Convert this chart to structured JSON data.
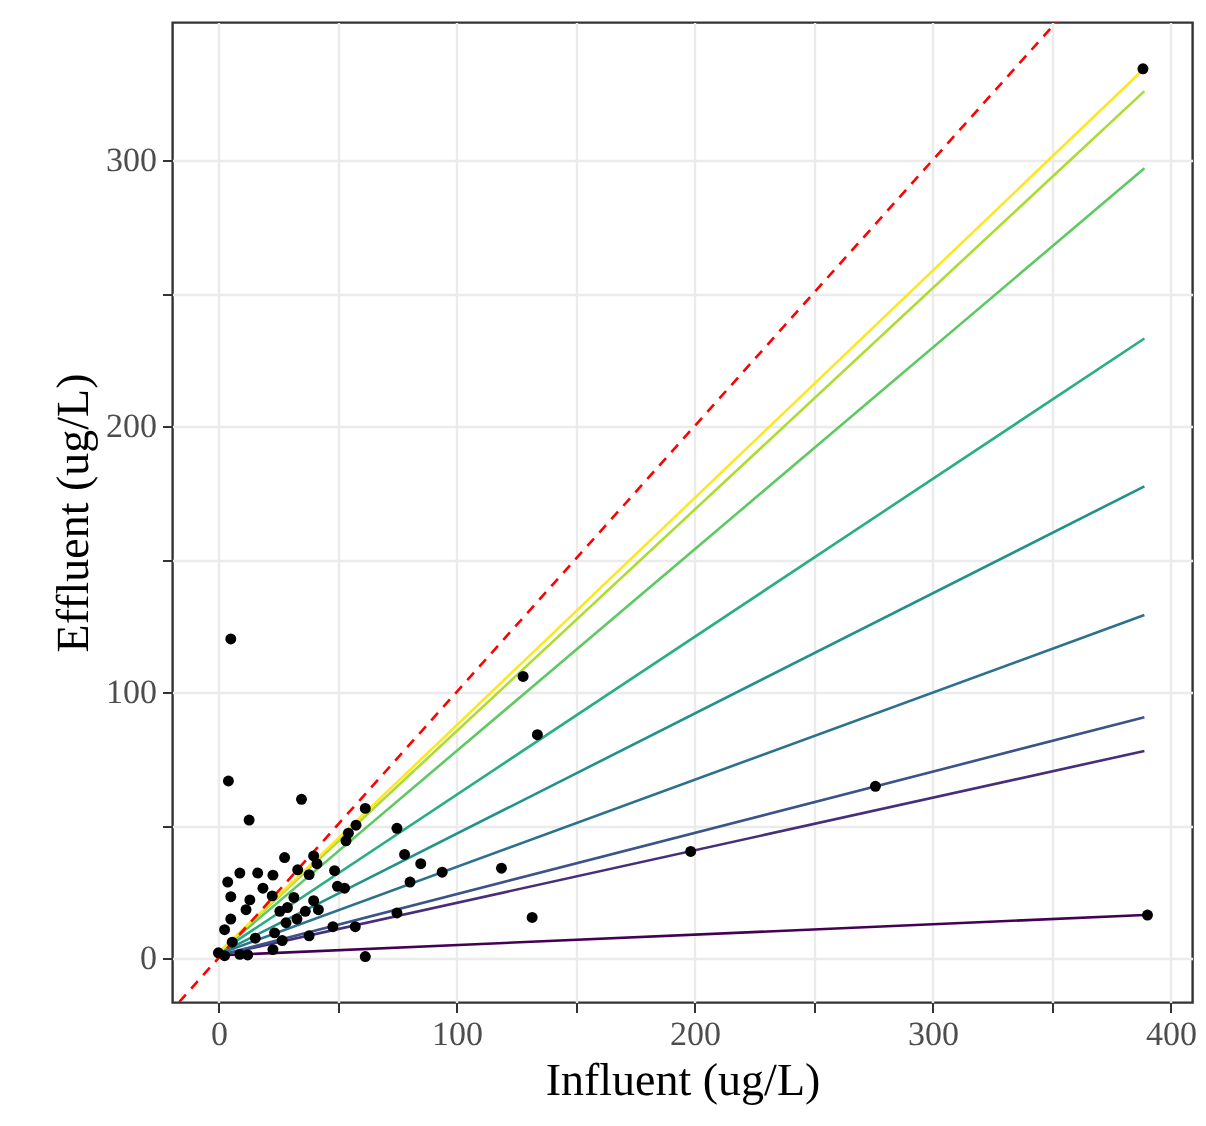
{
  "chart_data": {
    "type": "scatter",
    "xlabel": "Influent (ug/L)",
    "ylabel": "Effluent (ug/L)",
    "xlim": [
      -19.5,
      409
    ],
    "ylim": [
      -16.5,
      352
    ],
    "xticks": [
      0,
      {
        "value": 50,
        "label": null
      },
      100,
      {
        "value": 150,
        "label": null
      },
      200,
      {
        "value": 250,
        "label": null
      },
      300,
      {
        "value": 350,
        "label": null
      },
      400
    ],
    "yticks": [
      0,
      {
        "value": 50,
        "label": null
      },
      100,
      {
        "value": 150,
        "label": null
      },
      200,
      {
        "value": 250,
        "label": null
      },
      300
    ],
    "grid": true,
    "series": [
      {
        "type": "line",
        "color": "#440154",
        "x": [
          0,
          389
        ],
        "values": [
          1,
          16.2
        ]
      },
      {
        "type": "line",
        "color": "#472d7b",
        "x": [
          0,
          389
        ],
        "values": [
          1,
          77.9
        ]
      },
      {
        "type": "line",
        "color": "#3b528b",
        "x": [
          0,
          389
        ],
        "values": [
          1,
          90.6
        ]
      },
      {
        "type": "line",
        "color": "#2c728e",
        "x": [
          0,
          389
        ],
        "values": [
          1.5,
          129
        ]
      },
      {
        "type": "line",
        "color": "#21918c",
        "x": [
          0,
          389
        ],
        "values": [
          1.5,
          177.4
        ]
      },
      {
        "type": "line",
        "color": "#28ae80",
        "x": [
          0,
          389
        ],
        "values": [
          2,
          233
        ]
      },
      {
        "type": "line",
        "color": "#5ec962",
        "x": [
          0,
          389
        ],
        "values": [
          2,
          297
        ]
      },
      {
        "type": "line",
        "color": "#addc30",
        "x": [
          0,
          389
        ],
        "values": [
          2,
          326
        ]
      },
      {
        "type": "line",
        "color": "#fde725",
        "x": [
          0,
          389
        ],
        "values": [
          2,
          334.5
        ]
      },
      {
        "type": "line",
        "color": "#ff0000",
        "line_style": "dashed",
        "x": [
          -16.5,
          352
        ],
        "values": [
          -16.5,
          352
        ]
      },
      {
        "marker": "circle",
        "color": "#000000",
        "x": [
          388.4,
          390.3,
          276,
          198.4,
          128,
          134,
          131.8,
          118.9,
          94,
          85,
          80.5,
          78.2,
          75,
          75,
          61.7,
          61.7,
          57.8,
          54.6,
          53.6,
          57.5,
          53,
          50,
          48.8,
          48.1,
          34.9,
          5.2,
          4.2,
          12.9,
          3.9,
          5.2,
          9,
          16.5,
          27.8,
          22.9,
          33.3,
          40,
          38.1,
          41.4,
          40,
          42,
          38.1,
          33,
          29,
          31.7,
          25.8,
          22.6,
          18.7,
          13.2,
          11.6,
          5.2,
          2.6,
          5.8,
          9,
          2.6,
          0,
          12.3,
          22.9,
          23.6,
          15.5,
          28.4,
          36.5,
          26.8
        ],
        "values": [
          334.4,
          16.2,
          64.6,
          40.1,
          105.9,
          84,
          15.3,
          33.8,
          32.3,
          35.5,
          28.6,
          39,
          48.8,
          17,
          0.6,
          56.3,
          50,
          47,
          44.1,
          11.8,
          26.3,
          27,
          32.9,
          11.8,
          59.7,
          120,
          66.6,
          51.9,
          28.6,
          23.1,
          32,
          32,
          37.8,
          31.2,
          33.2,
          38.4,
          31.4,
          35.5,
          21.6,
          18.2,
          8.4,
          14.7,
          19,
          22.8,
          17.6,
          23.4,
          26.3,
          21.9,
          18.2,
          14.7,
          10.7,
          6,
          1.4,
          0.9,
          2,
          1.2,
          3.2,
          9.5,
          7.5,
          13.3,
          17.6,
          6.6
        ]
      }
    ]
  }
}
